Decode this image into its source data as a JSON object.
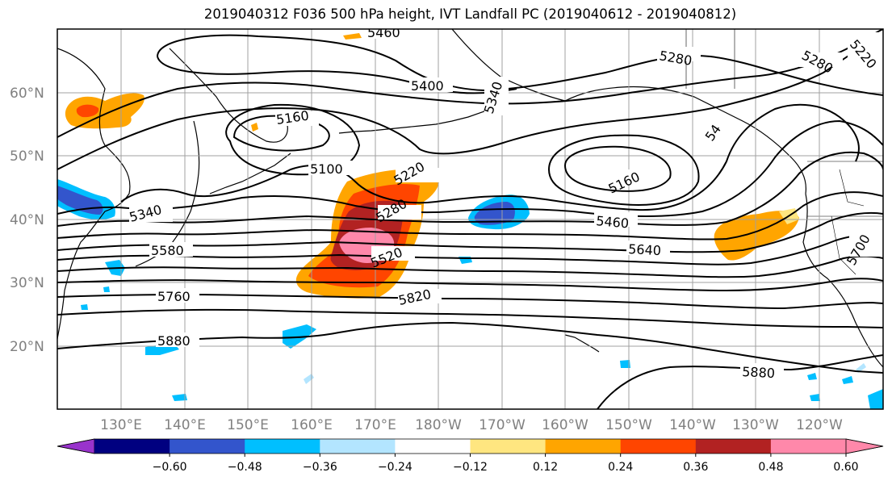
{
  "title": "2019040312 F036 500 hPa height, IVT Landfall PC (2019040612 - 2019040812)",
  "lat_labels": [
    "60°N",
    "50°N",
    "40°N",
    "30°N",
    "20°N"
  ],
  "lon_labels": [
    "130°E",
    "140°E",
    "150°E",
    "160°E",
    "170°E",
    "180°W",
    "170°W",
    "160°W",
    "150°W",
    "140°W",
    "130°W",
    "120°W"
  ],
  "contour_labels": [
    "5460",
    "5400",
    "5340",
    "5280",
    "5280",
    "5220",
    "5160",
    "5160",
    "5100",
    "5220",
    "5280",
    "5340",
    "5460",
    "5580",
    "5520",
    "5640",
    "5760",
    "5820",
    "5880",
    "5880",
    "5700",
    "54"
  ],
  "colorbar": {
    "ticks": [
      "−0.60",
      "−0.48",
      "−0.36",
      "−0.24",
      "−0.12",
      "0.12",
      "0.24",
      "0.36",
      "0.48",
      "0.60"
    ],
    "colors": [
      "#9933cc",
      "#000080",
      "#3355cc",
      "#00bfff",
      "#b3e5ff",
      "#ffffff",
      "#ffe680",
      "#ffa500",
      "#ff4500",
      "#b22222",
      "#ff88aa",
      "#ff88aa"
    ]
  },
  "fill_colors": {
    "light_orange": "#ffa500",
    "red_orange": "#ff4500",
    "dark_red": "#b22222",
    "pink": "#ff88aa",
    "light_blue": "#00bfff",
    "royal_blue": "#3355cc"
  }
}
